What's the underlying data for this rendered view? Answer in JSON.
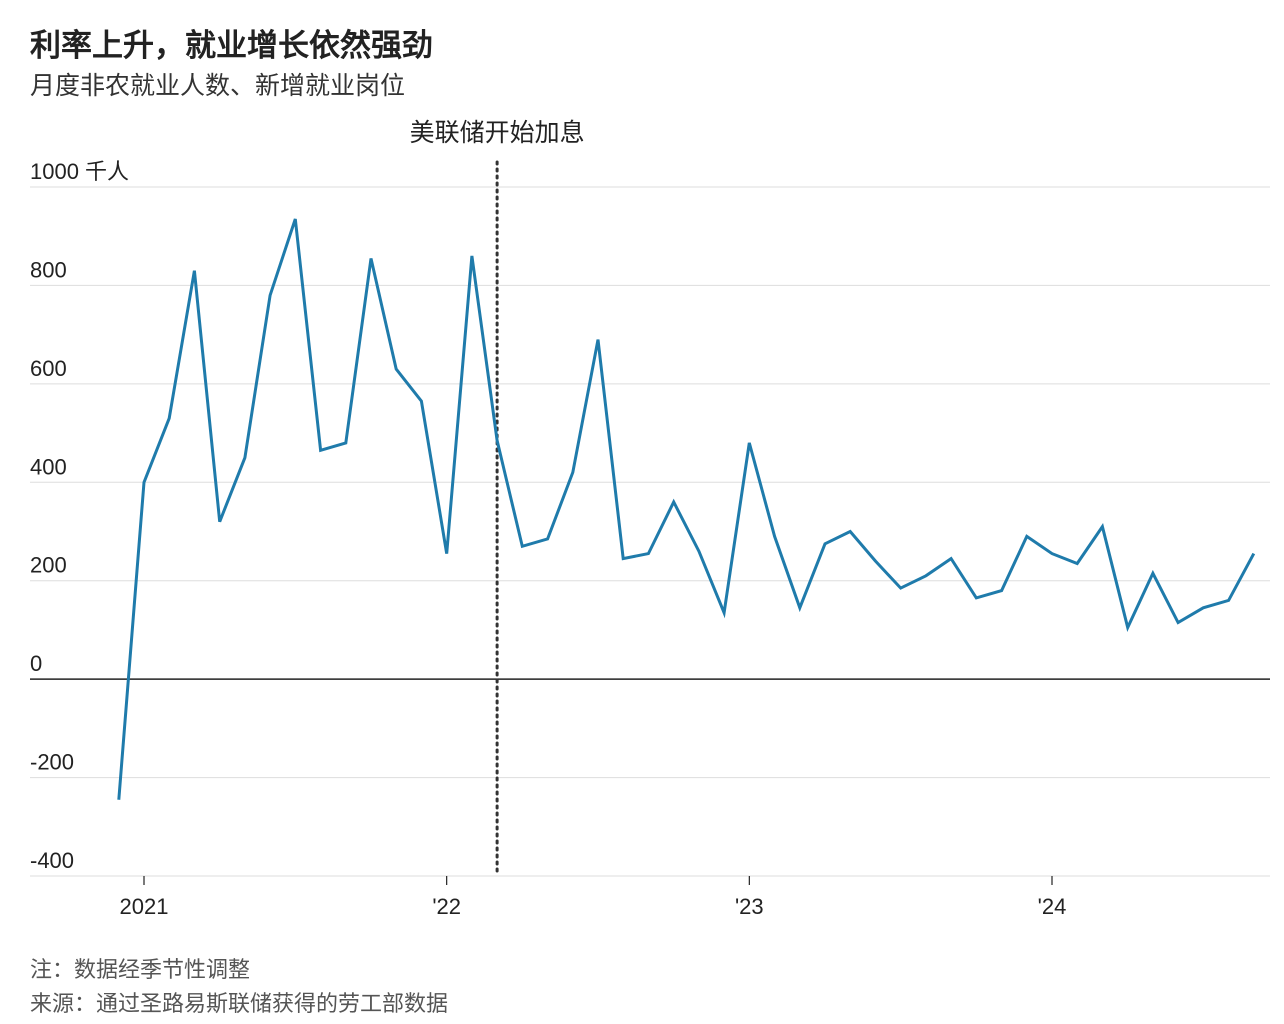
{
  "title": "利率上升，就业增长依然强劲",
  "subtitle": "月度非农就业人数、新增就业岗位",
  "note": "注：数据经季节性调整",
  "source": "来源：通过圣路易斯联储获得的劳工部数据",
  "colors": {
    "line": "#1f7bab",
    "grid": "#dddddd",
    "zero": "#222222",
    "annotation": "#333333"
  },
  "chart_data": {
    "type": "line",
    "title": "利率上升，就业增长依然强劲",
    "subtitle": "月度非农就业人数、新增就业岗位",
    "ylabel": "千人",
    "ylim": [
      -400,
      1000
    ],
    "yticks": [
      -400,
      -200,
      0,
      200,
      400,
      600,
      800,
      1000
    ],
    "ytick_labels": [
      "-400",
      "-200",
      "0",
      "200",
      "400",
      "600",
      "800",
      "1000 千人"
    ],
    "xticks": [
      {
        "date": "2021-01",
        "label": "2021"
      },
      {
        "date": "2022-01",
        "label": "'22"
      },
      {
        "date": "2023-01",
        "label": "'23"
      },
      {
        "date": "2024-01",
        "label": "'24"
      }
    ],
    "grid": true,
    "annotation": {
      "date": "2022-03",
      "label": "美联储开始加息",
      "style": "dotted vertical line"
    },
    "series": [
      {
        "x": [
          "2020-12",
          "2021-01",
          "2021-02",
          "2021-03",
          "2021-04",
          "2021-05",
          "2021-06",
          "2021-07",
          "2021-08",
          "2021-09",
          "2021-10",
          "2021-11",
          "2021-12",
          "2022-01",
          "2022-02",
          "2022-03",
          "2022-04",
          "2022-05",
          "2022-06",
          "2022-07",
          "2022-08",
          "2022-09",
          "2022-10",
          "2022-11",
          "2022-12",
          "2023-01",
          "2023-02",
          "2023-03",
          "2023-04",
          "2023-05",
          "2023-06",
          "2023-07",
          "2023-08",
          "2023-09",
          "2023-10",
          "2023-11",
          "2023-12",
          "2024-01",
          "2024-02",
          "2024-03",
          "2024-04",
          "2024-05",
          "2024-06",
          "2024-07",
          "2024-08",
          "2024-09"
        ],
        "values": [
          -245,
          400,
          530,
          830,
          320,
          450,
          780,
          935,
          465,
          480,
          855,
          630,
          565,
          255,
          860,
          485,
          270,
          285,
          420,
          690,
          245,
          255,
          360,
          260,
          135,
          480,
          290,
          145,
          275,
          300,
          240,
          185,
          210,
          245,
          165,
          180,
          290,
          255,
          235,
          310,
          105,
          215,
          115,
          145,
          160,
          255
        ]
      }
    ]
  }
}
